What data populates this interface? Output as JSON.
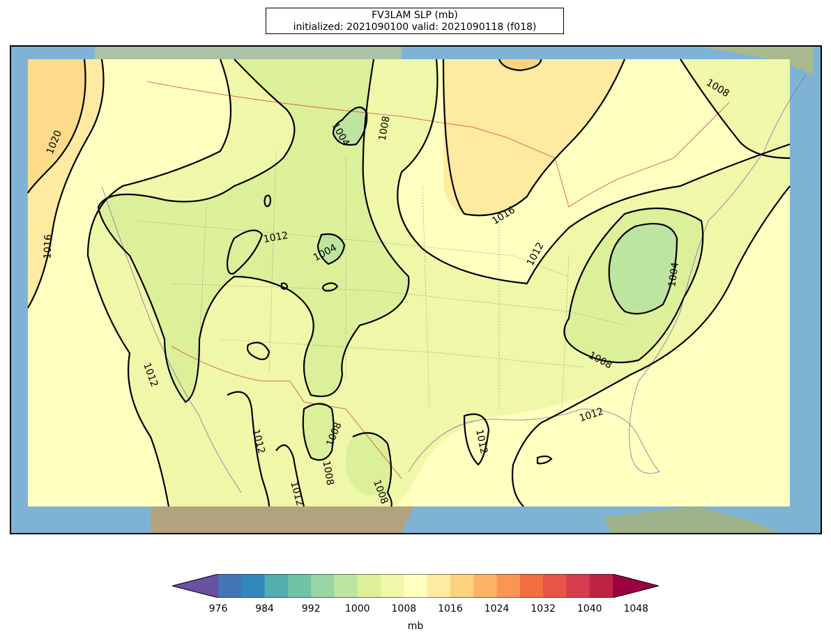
{
  "title": {
    "line1": "FV3LAM SLP (mb)",
    "line2": "initialized: 2021090100 valid: 2021090118 (f018)"
  },
  "contour_labels": [
    {
      "id": "c1020",
      "text": "1020"
    },
    {
      "id": "c1016w",
      "text": "1016"
    },
    {
      "id": "c1012sw",
      "text": "1012"
    },
    {
      "id": "c1004n",
      "text": "1004"
    },
    {
      "id": "c1008n",
      "text": "1008"
    },
    {
      "id": "c1012c",
      "text": "1012"
    },
    {
      "id": "c1004c",
      "text": "1004"
    },
    {
      "id": "c1016e",
      "text": "1016"
    },
    {
      "id": "c1012e",
      "text": "1012"
    },
    {
      "id": "c1008ne",
      "text": "1008"
    },
    {
      "id": "c1004e",
      "text": "1004"
    },
    {
      "id": "c1008se",
      "text": "1008"
    },
    {
      "id": "c1012gulf",
      "text": "1012"
    },
    {
      "id": "c1012tx",
      "text": "1012"
    },
    {
      "id": "c1012mx1",
      "text": "1012"
    },
    {
      "id": "c1012mx2",
      "text": "1012"
    },
    {
      "id": "c1008mx1",
      "text": "1008"
    },
    {
      "id": "c1008mx2",
      "text": "1008"
    },
    {
      "id": "c1008mx3",
      "text": "1008"
    }
  ],
  "colorbar": {
    "label": "mb",
    "ticks": [
      "976",
      "984",
      "992",
      "1000",
      "1008",
      "1016",
      "1024",
      "1032",
      "1040",
      "1048"
    ],
    "colors": [
      "#6a51a3",
      "#4575b4",
      "#3288bd",
      "#52aeae",
      "#70c3a4",
      "#99d4a3",
      "#bee5a0",
      "#dcf09a",
      "#eef8a8",
      "#ffffbf",
      "#feeaa0",
      "#fdd27f",
      "#fdb365",
      "#f99655",
      "#f46d43",
      "#e85547",
      "#d53e4f",
      "#bd2343",
      "#9e0142"
    ]
  }
}
